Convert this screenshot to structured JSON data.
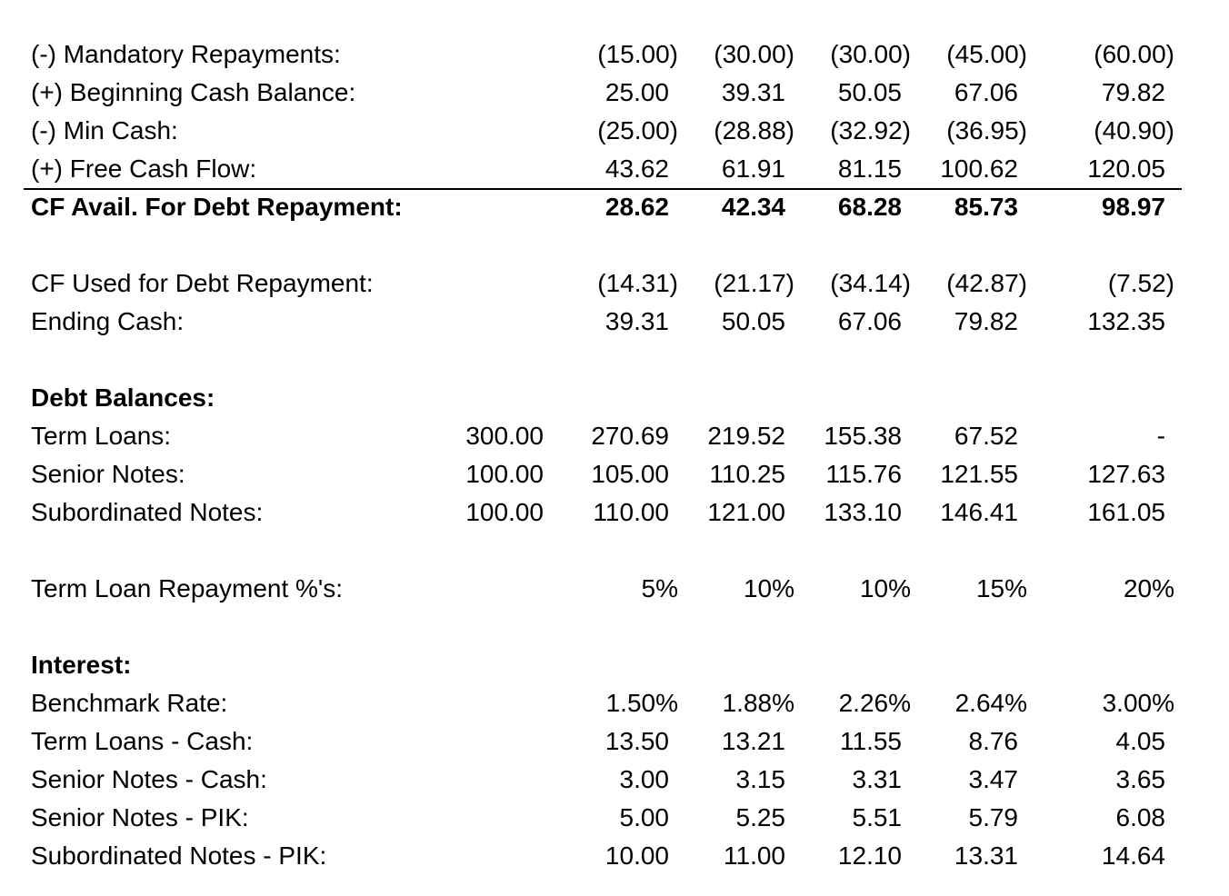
{
  "rows": [
    {
      "label": "(-) Mandatory Repayments:",
      "bold": false,
      "rule": false,
      "cells": [
        "",
        "(15.00)",
        "(30.00)",
        "(30.00)",
        "(45.00)",
        "(60.00)"
      ]
    },
    {
      "label": "(+) Beginning Cash Balance:",
      "bold": false,
      "rule": false,
      "cells": [
        "",
        "25.00",
        "39.31",
        "50.05",
        "67.06",
        "79.82"
      ]
    },
    {
      "label": "(-) Min Cash:",
      "bold": false,
      "rule": false,
      "cells": [
        "",
        "(25.00)",
        "(28.88)",
        "(32.92)",
        "(36.95)",
        "(40.90)"
      ]
    },
    {
      "label": "(+) Free Cash Flow:",
      "bold": false,
      "rule": false,
      "cells": [
        "",
        "43.62",
        "61.91",
        "81.15",
        "100.62",
        "120.05"
      ]
    },
    {
      "label": "CF Avail. For Debt Repayment:",
      "bold": true,
      "rule": true,
      "cells": [
        "",
        "28.62",
        "42.34",
        "68.28",
        "85.73",
        "98.97"
      ]
    },
    {
      "label": "",
      "bold": false,
      "rule": false,
      "cells": [
        "",
        "",
        "",
        "",
        "",
        ""
      ]
    },
    {
      "label": "CF Used for Debt Repayment:",
      "bold": false,
      "rule": false,
      "cells": [
        "",
        "(14.31)",
        "(21.17)",
        "(34.14)",
        "(42.87)",
        "(7.52)"
      ]
    },
    {
      "label": "Ending Cash:",
      "bold": false,
      "rule": false,
      "cells": [
        "",
        "39.31",
        "50.05",
        "67.06",
        "79.82",
        "132.35"
      ]
    },
    {
      "label": "",
      "bold": false,
      "rule": false,
      "cells": [
        "",
        "",
        "",
        "",
        "",
        ""
      ]
    },
    {
      "label": "Debt Balances:",
      "bold": true,
      "rule": false,
      "cells": [
        "",
        "",
        "",
        "",
        "",
        ""
      ]
    },
    {
      "label": "Term Loans:",
      "bold": false,
      "rule": false,
      "cells": [
        "300.00",
        "270.69",
        "219.52",
        "155.38",
        "67.52",
        "-"
      ]
    },
    {
      "label": "Senior Notes:",
      "bold": false,
      "rule": false,
      "cells": [
        "100.00",
        "105.00",
        "110.25",
        "115.76",
        "121.55",
        "127.63"
      ]
    },
    {
      "label": "Subordinated Notes:",
      "bold": false,
      "rule": false,
      "cells": [
        "100.00",
        "110.00",
        "121.00",
        "133.10",
        "146.41",
        "161.05"
      ]
    },
    {
      "label": "",
      "bold": false,
      "rule": false,
      "cells": [
        "",
        "",
        "",
        "",
        "",
        ""
      ]
    },
    {
      "label": "Term Loan Repayment %'s:",
      "bold": false,
      "rule": false,
      "cells": [
        "",
        "5%",
        "10%",
        "10%",
        "15%",
        "20%"
      ]
    },
    {
      "label": "",
      "bold": false,
      "rule": false,
      "cells": [
        "",
        "",
        "",
        "",
        "",
        ""
      ]
    },
    {
      "label": "Interest:",
      "bold": true,
      "rule": false,
      "cells": [
        "",
        "",
        "",
        "",
        "",
        ""
      ]
    },
    {
      "label": "Benchmark Rate:",
      "bold": false,
      "rule": false,
      "cells": [
        "",
        "1.50%",
        "1.88%",
        "2.26%",
        "2.64%",
        "3.00%"
      ]
    },
    {
      "label": "Term Loans - Cash:",
      "bold": false,
      "rule": false,
      "cells": [
        "",
        "13.50",
        "13.21",
        "11.55",
        "8.76",
        "4.05"
      ]
    },
    {
      "label": "Senior Notes - Cash:",
      "bold": false,
      "rule": false,
      "cells": [
        "",
        "3.00",
        "3.15",
        "3.31",
        "3.47",
        "3.65"
      ]
    },
    {
      "label": "Senior Notes - PIK:",
      "bold": false,
      "rule": false,
      "cells": [
        "",
        "5.00",
        "5.25",
        "5.51",
        "5.79",
        "6.08"
      ]
    },
    {
      "label": "Subordinated Notes - PIK:",
      "bold": false,
      "rule": false,
      "cells": [
        "",
        "10.00",
        "11.00",
        "12.10",
        "13.31",
        "14.64"
      ]
    }
  ]
}
